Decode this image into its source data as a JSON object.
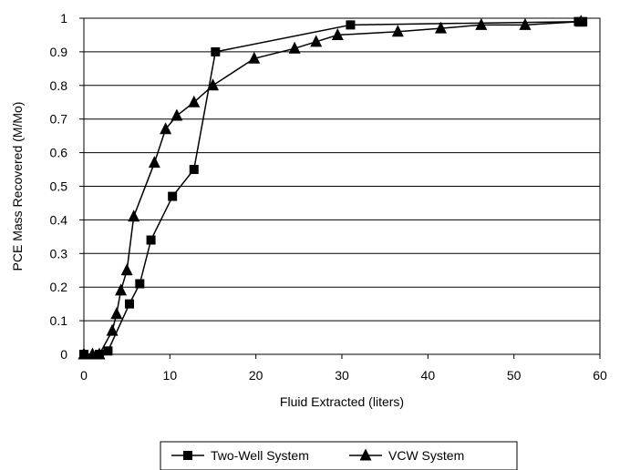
{
  "chart_data": {
    "type": "line",
    "title": "",
    "xlabel": "Fluid Extracted (liters)",
    "ylabel": "PCE Mass Recovered (M/Mo)",
    "xlim": [
      0,
      60
    ],
    "ylim": [
      0,
      1
    ],
    "xticks": [
      "0",
      "10",
      "20",
      "30",
      "40",
      "50",
      "60"
    ],
    "yticks": [
      "0",
      "0.1",
      "0.2",
      "0.3",
      "0.4",
      "0.5",
      "0.6",
      "0.7",
      "0.8",
      "0.9",
      "1"
    ],
    "grid": "horizontal",
    "legend_position": "bottom",
    "series": [
      {
        "name": "Two-Well System",
        "marker": "square",
        "color": "#000000",
        "points": [
          [
            0,
            0
          ],
          [
            1.8,
            0
          ],
          [
            2.8,
            0.01
          ],
          [
            5.3,
            0.15
          ],
          [
            6.5,
            0.21
          ],
          [
            7.8,
            0.34
          ],
          [
            10.3,
            0.47
          ],
          [
            12.8,
            0.55
          ],
          [
            15.3,
            0.9
          ],
          [
            31,
            0.98
          ],
          [
            57.5,
            0.99
          ],
          [
            58,
            0.99
          ]
        ]
      },
      {
        "name": "VCW System",
        "marker": "triangle",
        "color": "#000000",
        "points": [
          [
            0,
            0
          ],
          [
            1,
            0
          ],
          [
            1.8,
            0
          ],
          [
            3.3,
            0.07
          ],
          [
            3.8,
            0.12
          ],
          [
            4.3,
            0.19
          ],
          [
            5.0,
            0.25
          ],
          [
            5.8,
            0.41
          ],
          [
            8.2,
            0.57
          ],
          [
            9.5,
            0.67
          ],
          [
            10.8,
            0.71
          ],
          [
            12.8,
            0.75
          ],
          [
            15.0,
            0.8
          ],
          [
            19.8,
            0.88
          ],
          [
            24.5,
            0.91
          ],
          [
            27.0,
            0.93
          ],
          [
            29.5,
            0.95
          ],
          [
            36.5,
            0.96
          ],
          [
            41.5,
            0.97
          ],
          [
            46.2,
            0.98
          ],
          [
            51.3,
            0.98
          ],
          [
            57.8,
            0.99
          ]
        ]
      }
    ]
  }
}
